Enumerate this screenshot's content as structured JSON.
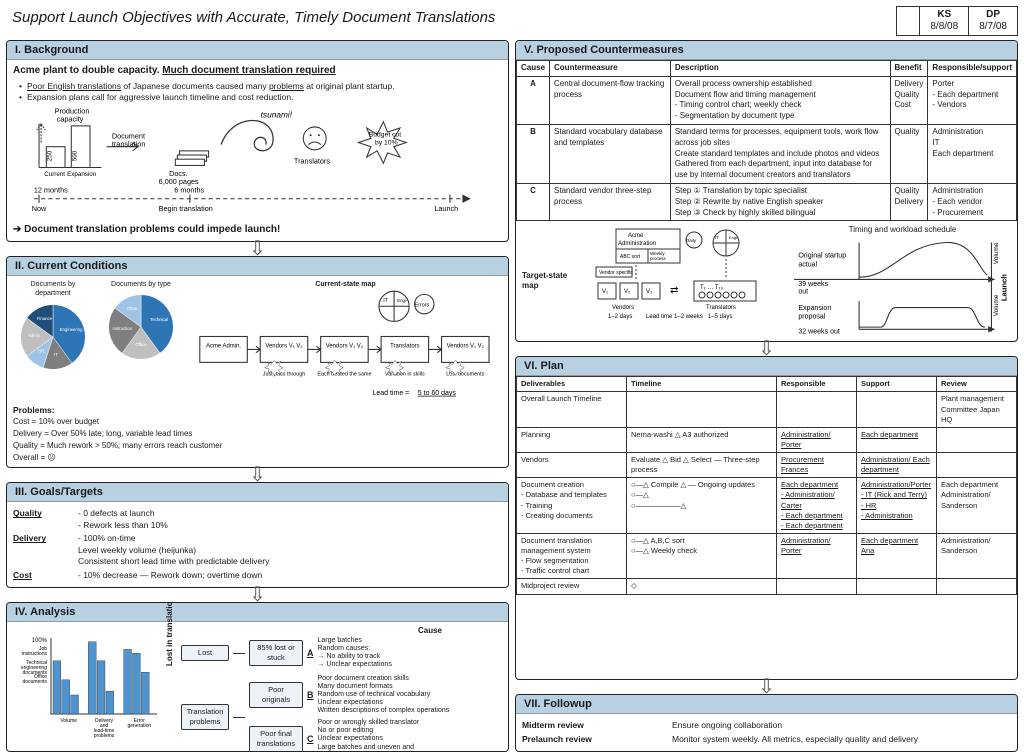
{
  "title": "Support Launch Objectives with Accurate, Timely Document Translations",
  "signoffs": [
    {
      "name": "KS",
      "date": "8/8/08"
    },
    {
      "name": "DP",
      "date": "8/7/08"
    }
  ],
  "colors": {
    "header_bg": "#b7d0e2",
    "accent_blue": "#2b6aa8",
    "light_blue": "#e2ecf5",
    "pie_blue1": "#1f4e79",
    "pie_blue2": "#2e75b6",
    "pie_blue3": "#5b9bd5",
    "pie_blue4": "#9dc3e6",
    "pie_grey1": "#7f7f7f",
    "pie_grey2": "#bfbfbf",
    "bar_fill": "#4f93cf",
    "border": "#222222"
  },
  "background": {
    "heading": "I. Background",
    "headline": "Acme plant to double capacity.  Much document translation required",
    "bullets": [
      "Poor English translations of Japanese documents caused many problems at original plant startup.",
      "Expansion plans call for aggressive launch timeline and cost reduction."
    ],
    "diagram": {
      "prod_cap_label": "Production capacity",
      "bar_current": 250,
      "bar_expansion": 500,
      "bar_labels": [
        "Current",
        "Expansion"
      ],
      "arrow1": "Document translation",
      "docs_pages": "Docs. 6,000 pages",
      "tsunami": "tsunami!",
      "translators": "Translators",
      "budget": "Budget cut by 10%",
      "timeline": {
        "left": "12 months",
        "mid": "6 months",
        "right": "Launch",
        "leftlabel": "Now",
        "midlabel": "Begin translation"
      }
    },
    "footer": "Document translation problems could impede launch!"
  },
  "current": {
    "heading": "II. Current Conditions",
    "pie1": {
      "title": "Documents by department",
      "slices": [
        {
          "label": "Engineering",
          "value": 40,
          "color": "#2e75b6"
        },
        {
          "label": "IT",
          "value": 15,
          "color": "#7f7f7f"
        },
        {
          "label": "HR, other",
          "value": 10,
          "color": "#9dc3e6"
        },
        {
          "label": "Admin",
          "value": 20,
          "color": "#bfbfbf"
        },
        {
          "label": "Finance",
          "value": 15,
          "color": "#1f4e79"
        }
      ]
    },
    "pie2": {
      "title": "Documents by type",
      "slices": [
        {
          "label": "Technical Documents",
          "value": 40,
          "color": "#2e75b6"
        },
        {
          "label": "Office Documents",
          "value": 20,
          "color": "#bfbfbf"
        },
        {
          "label": "Instruction Documents",
          "value": 25,
          "color": "#7f7f7f"
        },
        {
          "label": "Other",
          "value": 15,
          "color": "#9dc3e6"
        }
      ]
    },
    "map_title": "Current-state map",
    "map_steps": [
      "Acme Admin.",
      "Vendors V₁ V₂",
      "Vendors V₁ V₂",
      "Translators",
      "Vendors V₁ V₂"
    ],
    "map_notes": [
      "Just pass through",
      "Each treated the same",
      "Variation in skills",
      "Lost documents"
    ],
    "lead_time": "Lead time = 5 to 60 days",
    "problems_label": "Problems:",
    "problems": [
      "Cost = 10% over budget",
      "Delivery = Over 50% late; long, variable lead times",
      "Quality = Much rework > 50%; many errors reach customer",
      "Overall = ☹"
    ]
  },
  "goals": {
    "heading": "III. Goals/Targets",
    "rows": [
      {
        "cat": "Quality",
        "text": "- 0 defects at launch\n- Rework less than 10%"
      },
      {
        "cat": "Delivery",
        "text": "- 100% on-time\n  Level weekly volume (heijunka)\n  Consistent short lead time with predictable delivery"
      },
      {
        "cat": "Cost",
        "text": "- 10% decrease — Rework down; overtime down"
      }
    ]
  },
  "analysis": {
    "heading": "IV. Analysis",
    "bar_chart": {
      "ylabel": "%",
      "ymax": 100,
      "categories": [
        "Job instructions",
        "Technical engineering documents",
        "Office documents"
      ],
      "series": [
        "Volume",
        "Delivery and lead-time problems",
        "Error generation"
      ],
      "values": [
        [
          70,
          95,
          85
        ],
        [
          45,
          70,
          80
        ],
        [
          25,
          30,
          55
        ]
      ],
      "bar_color": "#4f93cf"
    },
    "lost_label": "Lost in translation",
    "tree": {
      "root": "Lost",
      "b1": {
        "label": "85% lost or stuck",
        "cause": "A",
        "notes": [
          "Large batches",
          "Random causes:",
          "→ No ability to track",
          "→ Unclear expectations"
        ]
      },
      "root2": "Translation problems",
      "b2": {
        "label": "Poor originals",
        "cause": "B",
        "notes": [
          "Poor document creation skills",
          "Many document formats",
          "Random use of technical vocabulary",
          "Unclear expectations",
          "Written descriptions of complex operations"
        ]
      },
      "b3": {
        "label": "Poor final translations",
        "cause": "C",
        "notes": [
          "Poor or wrongly skilled translator",
          "No or poor editing",
          "Unclear expectations",
          "Large batches and uneven and unpredictable workloads"
        ]
      }
    },
    "cause_head": "Cause"
  },
  "counter": {
    "heading": "V. Proposed Countermeasures",
    "columns": [
      "Cause",
      "Countermeasure",
      "Description",
      "Benefit",
      "Responsible/support"
    ],
    "rows": [
      {
        "cause": "A",
        "cm": "Central document-flow tracking process",
        "desc": "Overall process ownership established\nDocument flow and timing management\n - Timing control chart; weekly check\n - Segmentation by document type",
        "benefit": "Delivery\nQuality\nCost",
        "resp": "Porter\n- Each department\n- Vendors"
      },
      {
        "cause": "B",
        "cm": "Standard vocabulary database and templates",
        "desc": "Standard terms for processes, equipment tools, work flow across job sites\nCreate standard templates and include photos and videos\nGathered from each department, input into database for use by internal document creators and translators",
        "benefit": "Quality",
        "resp": "Administration\nIT\nEach department"
      },
      {
        "cause": "C",
        "cm": "Standard vendor three-step process",
        "desc": "Step ① Translation by topic specialist\nStep ② Rewrite by native English speaker\nStep ③ Check by highly skilled bilingual",
        "benefit": "Quality\nDelivery",
        "resp": "Administration\n- Each vendor\n- Procurement"
      }
    ],
    "target_map_label": "Target-state map",
    "target_lead": "Lead time 1–2 weeks",
    "schedule_label": "Timing and workload schedule",
    "schedule_orig": "Original startup actual",
    "schedule_exp": "Expansion proposal",
    "schedule_weeks_a": "39 weeks out",
    "schedule_weeks_b": "32 weeks out",
    "launch_axis": "Launch",
    "volume_axis": "Volume"
  },
  "plan": {
    "heading": "VI. Plan",
    "columns": [
      "Deliverables",
      "Timeline",
      "Responsible",
      "Support",
      "Review"
    ],
    "rows": [
      {
        "d": "Overall Launch Timeline",
        "t": "",
        "r": "",
        "s": "",
        "v": "Plant management Committee Japan HQ"
      },
      {
        "d": "Planning",
        "t": "Nema-washi △ A3 authorized",
        "r": "Administration/ Porter",
        "s": "Each department",
        "v": ""
      },
      {
        "d": "Vendors",
        "t": "Evaluate △ Bid △ Select — Three-step process",
        "r": "Procurement Frances",
        "s": "Administration/ Each department",
        "v": ""
      },
      {
        "d": "Document creation\n- Database and templates\n- Training\n- Creating documents",
        "t": "○—△ Compile △ — Ongoing updates\n○—△\n○——————△",
        "r": "Each department\n- Administration/ Carter\n- Each department\n- Each department",
        "s": "Administration/Porter\n- IT (Rick and Terry)\n- HR\n- Administration",
        "v": "Each department\nAdministration/ Sanderson"
      },
      {
        "d": "Document translation management system\n- Flow segmentation\n- Traffic control chart",
        "t": "○—△ A,B,C sort\n○—△ Weekly check",
        "r": "Administration/ Porter",
        "s": "Each department Ana",
        "v": "Administration/ Sanderson"
      },
      {
        "d": "Midproject review",
        "t": "◇",
        "r": "",
        "s": "",
        "v": ""
      }
    ]
  },
  "followup": {
    "heading": "VII. Followup",
    "rows": [
      {
        "label": "Midterm review",
        "text": "Ensure ongoing collaboration"
      },
      {
        "label": "Prelaunch review",
        "text": "Monitor system weekly.  All metrics, especially quality and delivery"
      }
    ]
  }
}
